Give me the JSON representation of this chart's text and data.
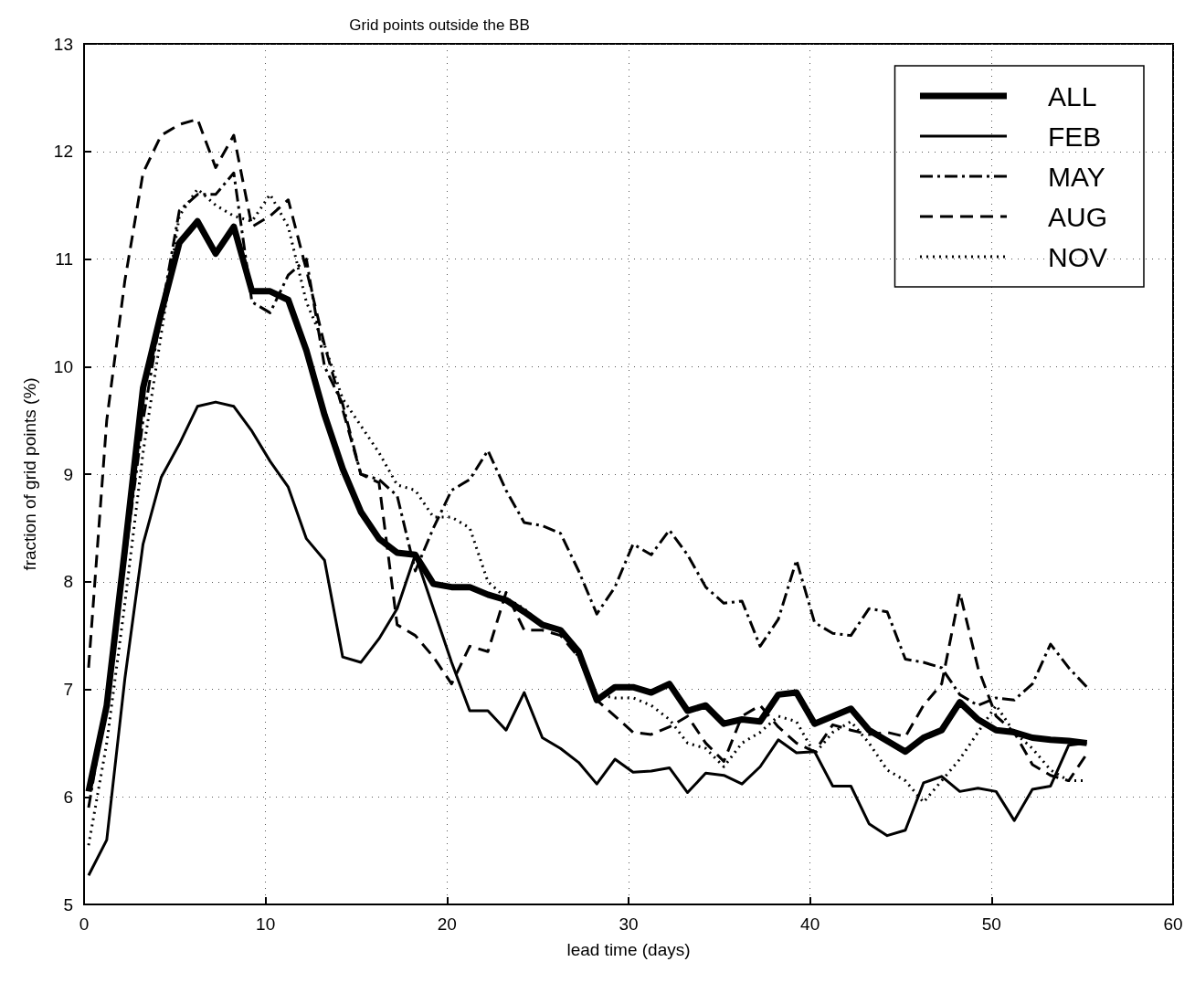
{
  "chart_data": {
    "type": "line",
    "title": "Grid points outside the BB",
    "xlabel": "lead time (days)",
    "ylabel": "fraction of grid points (%)",
    "x": [
      0.25,
      1.25,
      2.25,
      3.25,
      4.25,
      5.25,
      6.25,
      7.25,
      8.25,
      9.25,
      10.25,
      11.25,
      12.25,
      13.25,
      14.25,
      15.25,
      16.25,
      17.25,
      18.25,
      19.25,
      20.25,
      21.25,
      22.25,
      23.25,
      24.25,
      25.25,
      26.25,
      27.25,
      28.25,
      29.25,
      30.25,
      31.25,
      32.25,
      33.25,
      34.25,
      35.25,
      36.25,
      37.25,
      38.25,
      39.25,
      40.25,
      41.25,
      42.25,
      43.25,
      44.25,
      45.25,
      46.25,
      47.25,
      48.25,
      49.25,
      50.25,
      51.25,
      52.25,
      53.25,
      54.25,
      55.25
    ],
    "series": [
      {
        "name": "ALL",
        "color": "#000000",
        "line_style": "solid",
        "values": [
          6.05,
          6.85,
          8.3,
          9.8,
          10.5,
          11.15,
          11.35,
          11.05,
          11.3,
          10.7,
          10.7,
          10.62,
          10.15,
          9.55,
          9.05,
          8.65,
          8.4,
          8.27,
          8.25,
          7.98,
          7.95,
          7.95,
          7.88,
          7.83,
          7.72,
          7.6,
          7.55,
          7.35,
          6.9,
          7.02,
          7.02,
          6.97,
          7.05,
          6.8,
          6.85,
          6.68,
          6.72,
          6.7,
          6.95,
          6.97,
          6.68,
          6.75,
          6.82,
          6.62,
          6.52,
          6.42,
          6.55,
          6.62,
          6.88,
          6.72,
          6.62,
          6.6,
          6.55,
          6.53,
          6.52,
          6.5
        ]
      },
      {
        "name": "FEB",
        "color": "#000000",
        "line_style": "solid",
        "values": [
          5.27,
          5.6,
          7.1,
          8.35,
          8.97,
          9.28,
          9.63,
          9.67,
          9.63,
          9.4,
          9.12,
          8.88,
          8.4,
          8.2,
          7.3,
          7.25,
          7.47,
          7.75,
          8.25,
          7.75,
          7.25,
          6.8,
          6.8,
          6.62,
          6.97,
          6.55,
          6.45,
          6.32,
          6.12,
          6.35,
          6.23,
          6.24,
          6.27,
          6.04,
          6.22,
          6.2,
          6.12,
          6.28,
          6.53,
          6.41,
          6.42,
          6.1,
          6.1,
          5.75,
          5.64,
          5.69,
          6.13,
          6.19,
          6.05,
          6.08,
          6.05,
          5.78,
          6.07,
          6.1,
          6.48,
          6.5
        ]
      },
      {
        "name": "MAY",
        "color": "#000000",
        "line_style": "dashdot",
        "values": [
          5.9,
          6.9,
          8.2,
          9.5,
          10.5,
          11.45,
          11.6,
          11.6,
          11.8,
          10.6,
          10.5,
          10.85,
          11.0,
          10.0,
          9.65,
          9.0,
          8.95,
          8.8,
          8.1,
          8.5,
          8.85,
          8.95,
          9.22,
          8.85,
          8.55,
          8.52,
          8.45,
          8.1,
          7.7,
          7.95,
          8.35,
          8.25,
          8.48,
          8.25,
          7.95,
          7.8,
          7.82,
          7.4,
          7.65,
          8.2,
          7.62,
          7.52,
          7.5,
          7.75,
          7.72,
          7.28,
          7.25,
          7.2,
          6.95,
          6.85,
          6.92,
          6.9,
          7.05,
          7.42,
          7.2,
          7.02
        ]
      },
      {
        "name": "AUG",
        "color": "#000000",
        "line_style": "dashed",
        "values": [
          7.2,
          9.5,
          10.8,
          11.8,
          12.15,
          12.25,
          12.3,
          11.85,
          12.15,
          11.3,
          11.4,
          11.55,
          10.9,
          10.2,
          9.6,
          9.0,
          8.92,
          7.6,
          7.5,
          7.3,
          7.05,
          7.4,
          7.35,
          7.9,
          7.55,
          7.55,
          7.5,
          7.3,
          6.9,
          6.75,
          6.6,
          6.58,
          6.65,
          6.75,
          6.5,
          6.33,
          6.75,
          6.85,
          6.65,
          6.5,
          6.42,
          6.67,
          6.62,
          6.58,
          6.6,
          6.56,
          6.85,
          7.05,
          7.9,
          7.2,
          6.75,
          6.6,
          6.3,
          6.2,
          6.15,
          6.4
        ]
      },
      {
        "name": "NOV",
        "color": "#000000",
        "line_style": "dotted",
        "values": [
          5.55,
          6.5,
          7.8,
          9.2,
          10.3,
          11.4,
          11.65,
          11.5,
          11.4,
          11.35,
          11.6,
          11.3,
          10.6,
          10.2,
          9.7,
          9.45,
          9.2,
          8.9,
          8.85,
          8.6,
          8.6,
          8.5,
          8.0,
          7.85,
          7.75,
          7.6,
          7.55,
          7.3,
          6.95,
          6.92,
          6.92,
          6.85,
          6.72,
          6.5,
          6.45,
          6.28,
          6.5,
          6.6,
          6.75,
          6.7,
          6.4,
          6.6,
          6.7,
          6.5,
          6.25,
          6.15,
          5.95,
          6.15,
          6.35,
          6.6,
          6.85,
          6.6,
          6.45,
          6.25,
          6.15,
          6.15
        ]
      }
    ],
    "xlim": [
      0,
      60
    ],
    "xticks": [
      0,
      10,
      20,
      30,
      40,
      50,
      60
    ],
    "ylim": [
      5,
      13
    ],
    "yticks": [
      5,
      6,
      7,
      8,
      9,
      10,
      11,
      12,
      13
    ],
    "grid": true,
    "legend": "top right",
    "marker": "none"
  }
}
